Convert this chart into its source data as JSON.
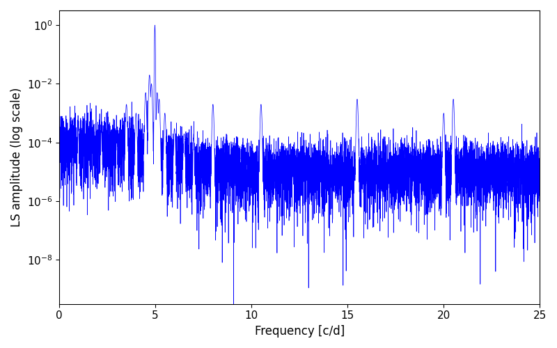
{
  "xlabel": "Frequency [c/d]",
  "ylabel": "LS amplitude (log scale)",
  "xlim": [
    0,
    25
  ],
  "ylim_log": [
    -9.5,
    0.5
  ],
  "line_color": "#0000ff",
  "line_width": 0.5,
  "background_color": "#ffffff",
  "xlabel_fontsize": 12,
  "ylabel_fontsize": 12,
  "tick_fontsize": 11,
  "figsize": [
    8.0,
    5.0
  ],
  "dpi": 100,
  "main_peak_freq": 4.98,
  "main_peak_amp": 1.0,
  "seed": 42
}
